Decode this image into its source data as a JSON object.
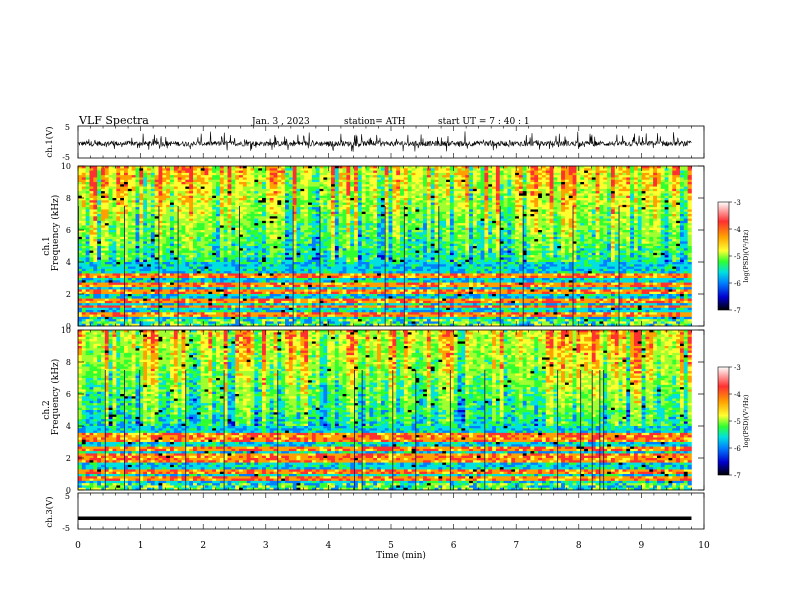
{
  "header": {
    "title": "VLF  Spectra",
    "date": "Jan.  3  , 2023",
    "station": "station= ATH",
    "start": "start  UT  =    7  : 40 : 1"
  },
  "colorbar": {
    "label": "log(PSD)(V²/Hz)",
    "ticks": [
      "-3",
      "-4",
      "-5",
      "-6",
      "-7"
    ],
    "colors": [
      "#ffffff",
      "#ff3030",
      "#ffa000",
      "#ffff30",
      "#30ff30",
      "#00e0e0",
      "#0080ff",
      "#0000d0",
      "#000000"
    ]
  },
  "chart_data": [
    {
      "type": "line",
      "name": "ch1-waveform",
      "ylabel": "ch.1(V)",
      "ylim": [
        -5,
        5
      ],
      "yticks": [
        "5",
        "-5"
      ],
      "xlim": [
        0,
        10
      ],
      "description_values": {
        "baseline": -0.5,
        "envelope": [
          -2.5,
          3
        ]
      }
    },
    {
      "type": "heatmap",
      "name": "ch1-spectrogram",
      "ylabel": "ch.1\nFrequency (kHz)",
      "ylim": [
        0,
        10
      ],
      "yticks": [
        "10",
        "8",
        "6",
        "4",
        "2",
        "0"
      ],
      "xlim": [
        0,
        9.8
      ],
      "zlim": [
        -7,
        -3
      ],
      "bands_khz": [
        0.7,
        1.2,
        1.6,
        2.1,
        2.6,
        3.1
      ]
    },
    {
      "type": "heatmap",
      "name": "ch2-spectrogram",
      "ylabel": "ch.2\nFrequency (kHz)",
      "ylim": [
        0,
        10
      ],
      "yticks": [
        "10",
        "8",
        "6",
        "4",
        "2",
        "0"
      ],
      "xlim": [
        0,
        9.8
      ],
      "zlim": [
        -7,
        -3
      ],
      "bands_khz": [
        0.7,
        1.1,
        1.9,
        2.1,
        2.6,
        3.1,
        3.4
      ]
    },
    {
      "type": "line",
      "name": "ch3-waveform",
      "ylabel": "ch.3(V)",
      "ylim": [
        -5,
        5
      ],
      "yticks": [
        "5",
        "-5"
      ],
      "xlim": [
        0,
        10
      ],
      "description_values": {
        "baseline": -2
      }
    }
  ],
  "xaxis": {
    "label": "Time  (min)",
    "ticks": [
      "0",
      "1",
      "2",
      "3",
      "4",
      "5",
      "6",
      "7",
      "8",
      "9",
      "10"
    ]
  }
}
